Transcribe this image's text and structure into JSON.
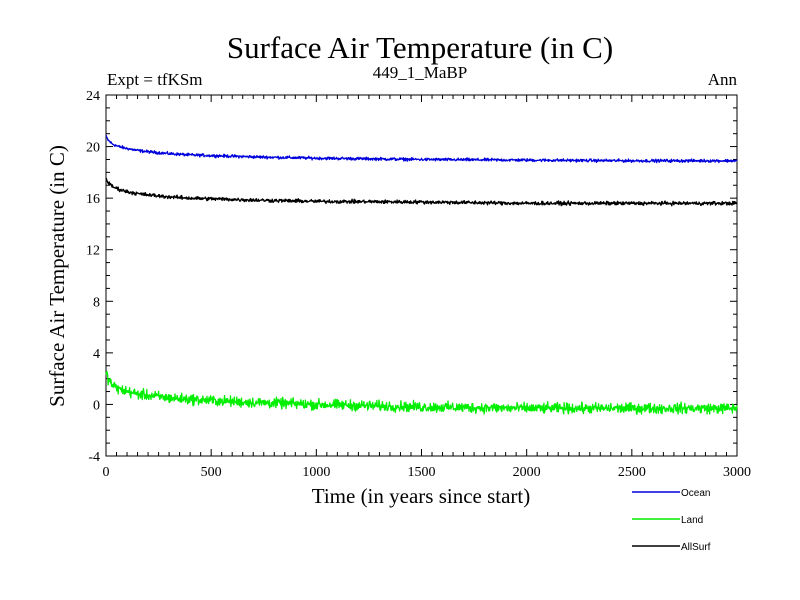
{
  "chart_data": {
    "type": "line",
    "title": "Surface Air Temperature (in C)",
    "subtitle_left": "Expt = tfKSm",
    "subtitle_center": "449_1_MaBP",
    "subtitle_right": "Ann",
    "xlabel": "Time (in years since start)",
    "ylabel": "Surface Air Temperature (in C)",
    "xlim": [
      0,
      3000
    ],
    "ylim": [
      -4,
      24
    ],
    "xticks": [
      0,
      500,
      1000,
      1500,
      2000,
      2500,
      3000
    ],
    "yticks": [
      -4,
      0,
      4,
      8,
      12,
      16,
      20,
      24
    ],
    "xtick_labels": [
      "0",
      "500",
      "1000",
      "1500",
      "2000",
      "2500",
      "3000"
    ],
    "ytick_labels": [
      "-4",
      "0",
      "4",
      "8",
      "12",
      "16",
      "20",
      "24"
    ],
    "series": [
      {
        "name": "Ocean",
        "color": "#0000dd",
        "noise": 0.08,
        "x": [
          0,
          10,
          30,
          60,
          100,
          150,
          200,
          300,
          400,
          500,
          700,
          1000,
          1500,
          2000,
          2500,
          3000
        ],
        "y": [
          20.8,
          20.5,
          20.2,
          20.0,
          19.85,
          19.7,
          19.6,
          19.45,
          19.35,
          19.3,
          19.2,
          19.1,
          19.0,
          18.95,
          18.9,
          18.9
        ]
      },
      {
        "name": "Land",
        "color": "#00ee00",
        "noise": 0.28,
        "x": [
          0,
          10,
          30,
          60,
          100,
          150,
          200,
          300,
          400,
          500,
          700,
          1000,
          1500,
          2000,
          2500,
          3000
        ],
        "y": [
          2.5,
          2.0,
          1.5,
          1.2,
          1.0,
          0.8,
          0.7,
          0.5,
          0.4,
          0.3,
          0.15,
          0.0,
          -0.2,
          -0.3,
          -0.3,
          -0.3
        ]
      },
      {
        "name": "AllSurf",
        "color": "#000000",
        "noise": 0.1,
        "x": [
          0,
          10,
          30,
          60,
          100,
          150,
          200,
          300,
          400,
          500,
          700,
          1000,
          1500,
          2000,
          2500,
          3000
        ],
        "y": [
          17.6,
          17.2,
          16.9,
          16.7,
          16.5,
          16.35,
          16.25,
          16.1,
          16.0,
          15.95,
          15.85,
          15.75,
          15.7,
          15.6,
          15.6,
          15.6
        ]
      }
    ]
  }
}
